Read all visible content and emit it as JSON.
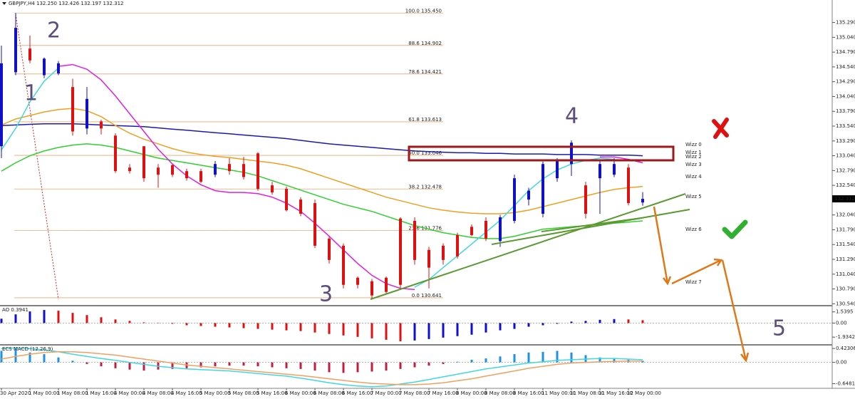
{
  "chart_data": [
    {
      "type": "candlestick",
      "title": "GBPJPY,H4 132.250 132.426 132.197 132.312",
      "x": [
        "30 Apr 2020",
        null,
        "1 May 00:00",
        null,
        "1 May 08:00",
        null,
        "1 May 16:00",
        null,
        "4 May 00:00",
        null,
        "4 May 08:00",
        null,
        "4 May 16:00",
        null,
        "5 May 00:00",
        null,
        "5 May 08:00",
        null,
        "5 May 16:00",
        null,
        "6 May 00:00",
        null,
        "6 May 08:00",
        null,
        "6 May 16:00",
        null,
        "7 May 00:00",
        null,
        "7 May 08:00",
        null,
        "7 May 16:00",
        null,
        "8 May 00:00",
        null,
        "8 May 08:00",
        null,
        "8 May 16:00",
        null,
        "11 May 00:00",
        null,
        "11 May 08:00",
        null,
        "11 May 16:00",
        null,
        "12 May 00:00",
        null
      ],
      "open": [
        133.2,
        134.45,
        134.85,
        134.4,
        134.43,
        134.2,
        133.5,
        133.62,
        133.38,
        132.84,
        133.2,
        132.84,
        132.88,
        132.78,
        132.78,
        132.72,
        132.9,
        132.9,
        133.08,
        132.54,
        132.48,
        132.3,
        132.24,
        131.64,
        131.52,
        130.98,
        130.92,
        130.98,
        131.98,
        131.94,
        131.45,
        131.52,
        131.7,
        131.84,
        131.94,
        131.6,
        131.94,
        132.3,
        132.06,
        132.66,
        132.9,
        132.54,
        132.66,
        132.72,
        132.84,
        132.25
      ],
      "high": [
        134.9,
        135.45,
        135.07,
        134.7,
        134.64,
        134.34,
        134.2,
        133.65,
        133.42,
        132.9,
        133.2,
        132.9,
        132.9,
        132.82,
        132.82,
        132.95,
        133.0,
        133.02,
        133.1,
        132.6,
        132.52,
        132.34,
        132.3,
        131.68,
        131.56,
        131.0,
        130.96,
        131.0,
        132.0,
        132.0,
        131.5,
        131.56,
        131.74,
        131.88,
        132.0,
        132.04,
        132.72,
        132.5,
        132.94,
        133.0,
        133.3,
        132.6,
        132.96,
        133.0,
        132.9,
        132.426
      ],
      "low": [
        133.0,
        134.4,
        134.6,
        134.35,
        134.4,
        133.38,
        133.4,
        133.4,
        132.75,
        132.74,
        132.6,
        132.5,
        132.68,
        132.62,
        132.58,
        132.68,
        132.72,
        132.64,
        132.45,
        132.38,
        132.1,
        132.02,
        131.48,
        131.22,
        130.8,
        130.8,
        130.62,
        130.7,
        130.8,
        131.2,
        130.8,
        131.2,
        131.3,
        131.68,
        131.6,
        131.5,
        131.9,
        132.2,
        132.0,
        132.6,
        132.7,
        131.98,
        132.06,
        132.68,
        132.2,
        132.197
      ],
      "close": [
        134.6,
        135.2,
        134.65,
        134.68,
        134.6,
        133.45,
        134.0,
        133.5,
        132.78,
        132.78,
        132.66,
        132.72,
        132.72,
        132.66,
        132.6,
        132.9,
        132.78,
        132.68,
        132.48,
        132.42,
        132.12,
        132.06,
        131.52,
        131.28,
        130.86,
        130.86,
        130.68,
        130.74,
        130.86,
        131.28,
        131.15,
        131.28,
        131.34,
        131.7,
        131.64,
        132.0,
        132.66,
        132.45,
        132.9,
        132.96,
        133.26,
        132.06,
        132.9,
        132.9,
        132.24,
        132.312
      ],
      "up_color": "#1010c8",
      "down_color": "#e01010",
      "series": [
        {
          "color": "#1a1ab0",
          "values": [
            133.55,
            133.56,
            133.57,
            133.58,
            133.58,
            133.58,
            133.57,
            133.56,
            133.55,
            133.54,
            133.53,
            133.51,
            133.49,
            133.47,
            133.45,
            133.43,
            133.41,
            133.39,
            133.37,
            133.35,
            133.33,
            133.3,
            133.27,
            133.24,
            133.22,
            133.2,
            133.18,
            133.16,
            133.14,
            133.12,
            133.11,
            133.1,
            133.09,
            133.09,
            133.08,
            133.08,
            133.07,
            133.07,
            133.07,
            133.06,
            133.06,
            133.06,
            133.05,
            133.05,
            133.05,
            133.04
          ]
        },
        {
          "color": "#f0a020",
          "values": [
            133.56,
            133.66,
            133.72,
            133.78,
            133.82,
            133.84,
            133.8,
            133.7,
            133.55,
            133.42,
            133.32,
            133.24,
            133.16,
            133.1,
            133.06,
            133.03,
            133.01,
            132.98,
            132.95,
            132.92,
            132.88,
            132.82,
            132.74,
            132.66,
            132.58,
            132.5,
            132.42,
            132.34,
            132.28,
            132.22,
            132.16,
            132.12,
            132.09,
            132.07,
            132.06,
            132.06,
            132.08,
            132.12,
            132.18,
            132.24,
            132.3,
            132.36,
            132.42,
            132.47,
            132.5,
            132.52
          ]
        },
        {
          "color": "#30d030",
          "values": [
            132.78,
            132.92,
            133.04,
            133.12,
            133.18,
            133.22,
            133.24,
            133.22,
            133.18,
            133.12,
            133.06,
            133.0,
            132.96,
            132.92,
            132.88,
            132.84,
            132.8,
            132.76,
            132.7,
            132.62,
            132.54,
            132.46,
            132.38,
            132.3,
            132.22,
            132.16,
            132.1,
            132.02,
            131.94,
            131.86,
            131.8,
            131.74,
            131.7,
            131.66,
            131.64,
            131.64,
            131.68,
            131.74,
            131.8,
            131.82,
            131.84,
            131.86,
            131.88,
            131.9,
            131.92,
            131.94
          ]
        },
        {
          "color": "#e020e0",
          "values": [
            null,
            null,
            null,
            null,
            134.55,
            134.58,
            134.5,
            134.32,
            134.05,
            133.75,
            133.45,
            133.15,
            132.9,
            132.7,
            132.55,
            132.45,
            132.42,
            132.42,
            132.4,
            132.34,
            132.24,
            132.1,
            131.9,
            131.68,
            131.45,
            131.22,
            131.02,
            130.88,
            130.8,
            130.78,
            null,
            null,
            null,
            null,
            null,
            null,
            null,
            null,
            null,
            null,
            null,
            null,
            133.02,
            133.02,
            132.98,
            132.92
          ]
        },
        {
          "color": "#40d8e0",
          "values": [
            133.14,
            133.5,
            133.95,
            134.3,
            134.52,
            null,
            null,
            null,
            null,
            null,
            null,
            null,
            null,
            null,
            null,
            null,
            null,
            null,
            null,
            null,
            null,
            null,
            null,
            null,
            null,
            null,
            null,
            null,
            null,
            130.82,
            130.95,
            131.15,
            131.35,
            131.55,
            131.75,
            131.95,
            132.2,
            132.45,
            132.65,
            132.8,
            132.9,
            132.96,
            133.0,
            132.98,
            null,
            null
          ]
        }
      ],
      "ylim": [
        130.52,
        135.67
      ],
      "yticks": [
        {
          "value": 135.29,
          "label": "135.290"
        },
        {
          "value": 135.04,
          "label": "135.040"
        },
        {
          "value": 134.79,
          "label": "134.790"
        },
        {
          "value": 134.54,
          "label": "134.540"
        },
        {
          "value": 134.29,
          "label": "134.290"
        },
        {
          "value": 134.04,
          "label": "134.040"
        },
        {
          "value": 133.79,
          "label": "133.790"
        },
        {
          "value": 133.54,
          "label": "133.540"
        },
        {
          "value": 133.29,
          "label": "133.290"
        },
        {
          "value": 133.04,
          "label": "133.040"
        },
        {
          "value": 132.79,
          "label": "132.790"
        },
        {
          "value": 132.54,
          "label": "132.540"
        },
        {
          "value": 132.29,
          "label": "132.290"
        },
        {
          "value": 132.04,
          "label": "132.040"
        },
        {
          "value": 131.79,
          "label": "131.790"
        },
        {
          "value": 131.54,
          "label": "131.540"
        },
        {
          "value": 131.29,
          "label": "131.290"
        },
        {
          "value": 131.04,
          "label": "131.040"
        },
        {
          "value": 130.79,
          "label": "130.790"
        },
        {
          "value": 130.54,
          "label": "130.540"
        }
      ],
      "fib_color": "#e8a870",
      "fib_levels": [
        {
          "value": 135.45,
          "label": "100.0 135.450"
        },
        {
          "value": 134.902,
          "label": "88.6 134.902"
        },
        {
          "value": 134.421,
          "label": "78.6 134.421"
        },
        {
          "value": 133.613,
          "label": "61.8 133.613"
        },
        {
          "value": 133.046,
          "label": "50.0 133.046"
        },
        {
          "value": 132.478,
          "label": "38.2 132.478"
        },
        {
          "value": 131.776,
          "label": "23.6 131.776"
        },
        {
          "value": 130.641,
          "label": "0.0 130.641"
        }
      ],
      "annotations": [
        "1",
        "2",
        "3",
        "4",
        "5"
      ],
      "wizz_labels": [
        {
          "text": "Wizz 0",
          "color": "#f0e020"
        },
        {
          "text": "Wizz 1",
          "color": "#e02020"
        },
        {
          "text": "Wizz 2",
          "color": "#c01818"
        },
        {
          "text": "Wizz 3",
          "color": "#f0a020"
        },
        {
          "text": "Wizz 4",
          "color": "#a0f0a0"
        },
        {
          "text": "Wizz 5",
          "color": "#30d030"
        },
        {
          "text": "Wizz 6",
          "color": "#40d8e0"
        },
        {
          "text": "Wizz 7",
          "color": "#1a1ab0"
        }
      ]
    },
    {
      "type": "bar",
      "title": "AO 0.3941",
      "values": [
        0.6,
        1.2,
        1.6,
        1.8,
        1.7,
        1.4,
        1.1,
        0.8,
        0.5,
        0.3,
        0.1,
        0.05,
        -0.1,
        -0.3,
        -0.4,
        -0.5,
        -0.6,
        -0.7,
        -0.8,
        -0.9,
        -1.0,
        -1.1,
        -1.3,
        -1.5,
        -1.7,
        -1.9,
        -2.1,
        -2.3,
        -2.5,
        -2.4,
        -2.2,
        -2.0,
        -1.8,
        -1.6,
        -1.3,
        -1.0,
        -0.8,
        -0.5,
        -0.3,
        -0.1,
        0.2,
        0.3,
        0.45,
        0.55,
        0.5,
        0.3941
      ],
      "up_color": "#1010c8",
      "down_color": "#e01010",
      "ylim": [
        -2.9,
        2.2
      ],
      "yticks": [
        1.5395,
        {
          "value": 0,
          "label": "0.00"
        },
        -1.9342
      ]
    },
    {
      "type": "bar",
      "title": "ECS MACD (12,26,9)",
      "values": [
        0.35,
        0.4,
        0.3,
        0.25,
        0.15,
        0.05,
        -0.05,
        -0.12,
        -0.18,
        -0.22,
        -0.25,
        -0.22,
        -0.2,
        -0.18,
        -0.15,
        -0.12,
        -0.1,
        -0.1,
        -0.12,
        -0.15,
        -0.18,
        -0.2,
        -0.25,
        -0.3,
        -0.32,
        -0.3,
        -0.28,
        -0.25,
        -0.2,
        -0.15,
        -0.1,
        -0.05,
        0.02,
        0.08,
        0.12,
        0.18,
        0.25,
        0.3,
        0.32,
        0.35,
        0.3,
        0.22,
        0.15,
        0.12,
        0.08,
        0.05
      ],
      "up_color": "#2090e0",
      "down_color": "#c02040",
      "series": [
        {
          "color": "#40d8e0",
          "values": [
            0.42,
            0.44,
            0.42,
            0.38,
            0.32,
            0.25,
            0.18,
            0.12,
            0.06,
            0.0,
            -0.06,
            -0.12,
            -0.16,
            -0.2,
            -0.22,
            -0.24,
            -0.26,
            -0.3,
            -0.34,
            -0.38,
            -0.42,
            -0.48,
            -0.55,
            -0.62,
            -0.68,
            -0.72,
            -0.74,
            -0.72,
            -0.66,
            -0.6,
            -0.52,
            -0.44,
            -0.36,
            -0.28,
            -0.2,
            -0.14,
            -0.08,
            -0.02,
            0.02,
            0.06,
            0.08,
            0.1,
            0.12,
            0.12,
            0.1,
            0.08
          ]
        },
        {
          "color": "#f0a060",
          "values": [
            0.1,
            0.18,
            0.25,
            0.3,
            0.32,
            0.32,
            0.3,
            0.26,
            0.22,
            0.16,
            0.1,
            0.04,
            -0.02,
            -0.08,
            -0.12,
            -0.16,
            -0.2,
            -0.24,
            -0.28,
            -0.32,
            -0.36,
            -0.4,
            -0.45,
            -0.5,
            -0.55,
            -0.6,
            -0.64,
            -0.66,
            -0.68,
            -0.68,
            -0.66,
            -0.62,
            -0.56,
            -0.5,
            -0.42,
            -0.34,
            -0.26,
            -0.18,
            -0.12,
            -0.06,
            -0.02,
            0.0,
            0.02,
            0.03,
            0.04,
            0.04
          ]
        }
      ],
      "ylim": [
        -0.79,
        0.49
      ],
      "yticks": [
        0.42306,
        {
          "value": 0,
          "label": "0.00"
        },
        -0.6481
      ]
    }
  ]
}
